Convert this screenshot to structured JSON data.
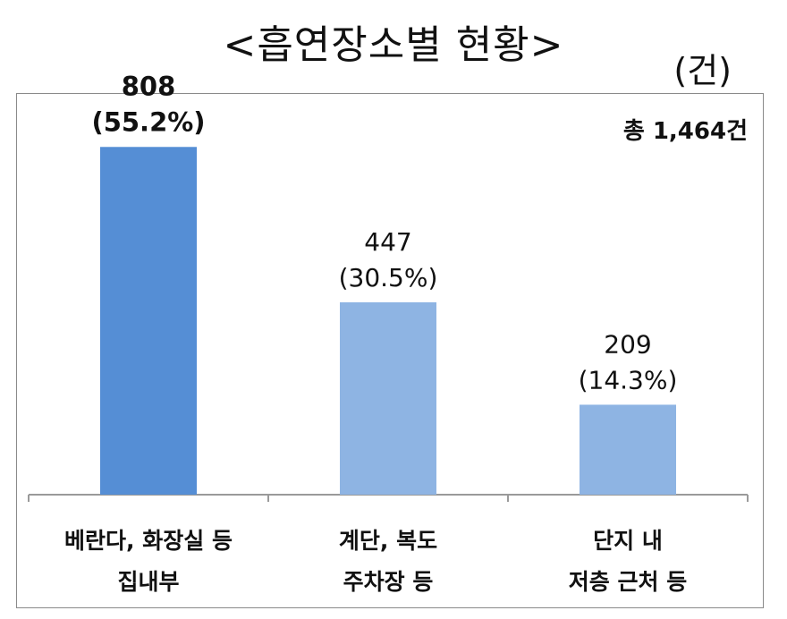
{
  "title": "<흡연장소별  현황>",
  "unit": "(건)",
  "total_label": "총 1,464건",
  "colors": {
    "primary": "#558ed5",
    "secondary": "#8eb4e3",
    "axis": "#9a9a9a"
  },
  "chart_data": {
    "type": "bar",
    "categories": [
      [
        "베란다, 화장실 등",
        "집내부"
      ],
      [
        "계단, 복도",
        "주차장 등"
      ],
      [
        "단지 내",
        "저층 근처 등"
      ]
    ],
    "values": [
      808,
      447,
      209
    ],
    "value_labels": [
      "808",
      "447",
      "209"
    ],
    "percent_labels": [
      "(55.2%)",
      "(30.5%)",
      "(14.3%)"
    ],
    "xlabel": "",
    "ylabel": "",
    "ylim": [
      0,
      900
    ],
    "grid": false,
    "legend": "none"
  }
}
